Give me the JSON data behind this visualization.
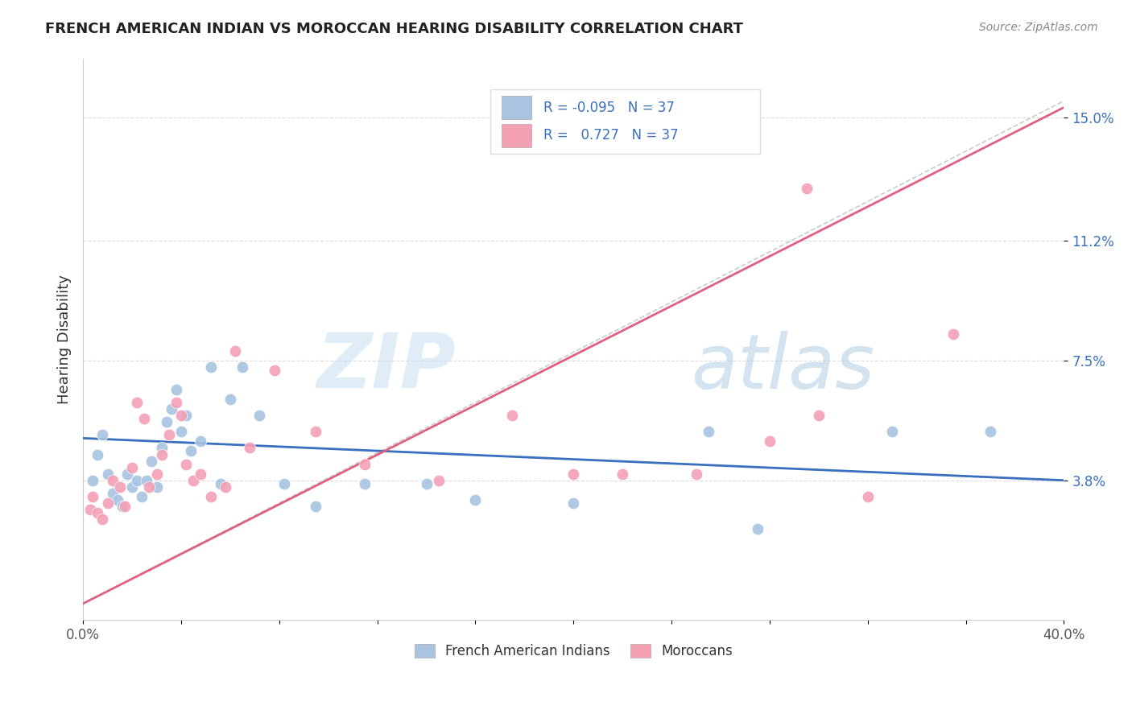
{
  "title": "FRENCH AMERICAN INDIAN VS MOROCCAN HEARING DISABILITY CORRELATION CHART",
  "source": "Source: ZipAtlas.com",
  "ylabel": "Hearing Disability",
  "xlim": [
    0.0,
    0.4
  ],
  "ylim": [
    -0.005,
    0.168
  ],
  "xticks": [
    0.0,
    0.04,
    0.08,
    0.12,
    0.16,
    0.2,
    0.24,
    0.28,
    0.32,
    0.36,
    0.4
  ],
  "xticklabels": [
    "0.0%",
    "",
    "",
    "",
    "",
    "",
    "",
    "",
    "",
    "",
    "40.0%"
  ],
  "ytick_positions": [
    0.038,
    0.075,
    0.112,
    0.15
  ],
  "ytick_labels": [
    "3.8%",
    "7.5%",
    "11.2%",
    "15.0%"
  ],
  "legend_blue_r": "-0.095",
  "legend_blue_n": "37",
  "legend_pink_r": "0.727",
  "legend_pink_n": "37",
  "blue_color": "#a8c4e0",
  "pink_color": "#f4a0b5",
  "blue_line_color": "#3a6fbd",
  "pink_line_color": "#e06080",
  "diag_line_color": "#cccccc",
  "text_color": "#3a6fbd",
  "watermark_color": "#daeaf5",
  "blue_points_x": [
    0.004,
    0.006,
    0.008,
    0.01,
    0.012,
    0.014,
    0.016,
    0.018,
    0.02,
    0.022,
    0.024,
    0.026,
    0.028,
    0.03,
    0.032,
    0.034,
    0.036,
    0.038,
    0.04,
    0.042,
    0.044,
    0.048,
    0.052,
    0.056,
    0.06,
    0.065,
    0.072,
    0.082,
    0.095,
    0.115,
    0.14,
    0.16,
    0.2,
    0.255,
    0.275,
    0.33,
    0.37
  ],
  "blue_points_y": [
    0.038,
    0.046,
    0.052,
    0.04,
    0.034,
    0.032,
    0.03,
    0.04,
    0.036,
    0.038,
    0.033,
    0.038,
    0.044,
    0.036,
    0.048,
    0.056,
    0.06,
    0.066,
    0.053,
    0.058,
    0.047,
    0.05,
    0.073,
    0.037,
    0.063,
    0.073,
    0.058,
    0.037,
    0.03,
    0.037,
    0.037,
    0.032,
    0.031,
    0.053,
    0.023,
    0.053,
    0.053
  ],
  "pink_points_x": [
    0.003,
    0.004,
    0.006,
    0.008,
    0.01,
    0.012,
    0.015,
    0.017,
    0.02,
    0.022,
    0.025,
    0.027,
    0.03,
    0.032,
    0.035,
    0.038,
    0.04,
    0.042,
    0.045,
    0.048,
    0.052,
    0.058,
    0.062,
    0.068,
    0.078,
    0.095,
    0.115,
    0.145,
    0.175,
    0.2,
    0.22,
    0.25,
    0.28,
    0.3,
    0.32,
    0.355,
    0.295
  ],
  "pink_points_y": [
    0.029,
    0.033,
    0.028,
    0.026,
    0.031,
    0.038,
    0.036,
    0.03,
    0.042,
    0.062,
    0.057,
    0.036,
    0.04,
    0.046,
    0.052,
    0.062,
    0.058,
    0.043,
    0.038,
    0.04,
    0.033,
    0.036,
    0.078,
    0.048,
    0.072,
    0.053,
    0.043,
    0.038,
    0.058,
    0.04,
    0.04,
    0.04,
    0.05,
    0.058,
    0.033,
    0.083,
    0.128
  ],
  "blue_line_x": [
    0.0,
    0.4
  ],
  "blue_line_y": [
    0.051,
    0.038
  ],
  "pink_line_x": [
    0.0,
    0.4
  ],
  "pink_line_y": [
    0.0,
    0.153
  ],
  "diag_line_x": [
    0.0,
    0.4
  ],
  "diag_line_y": [
    0.0,
    0.155
  ]
}
